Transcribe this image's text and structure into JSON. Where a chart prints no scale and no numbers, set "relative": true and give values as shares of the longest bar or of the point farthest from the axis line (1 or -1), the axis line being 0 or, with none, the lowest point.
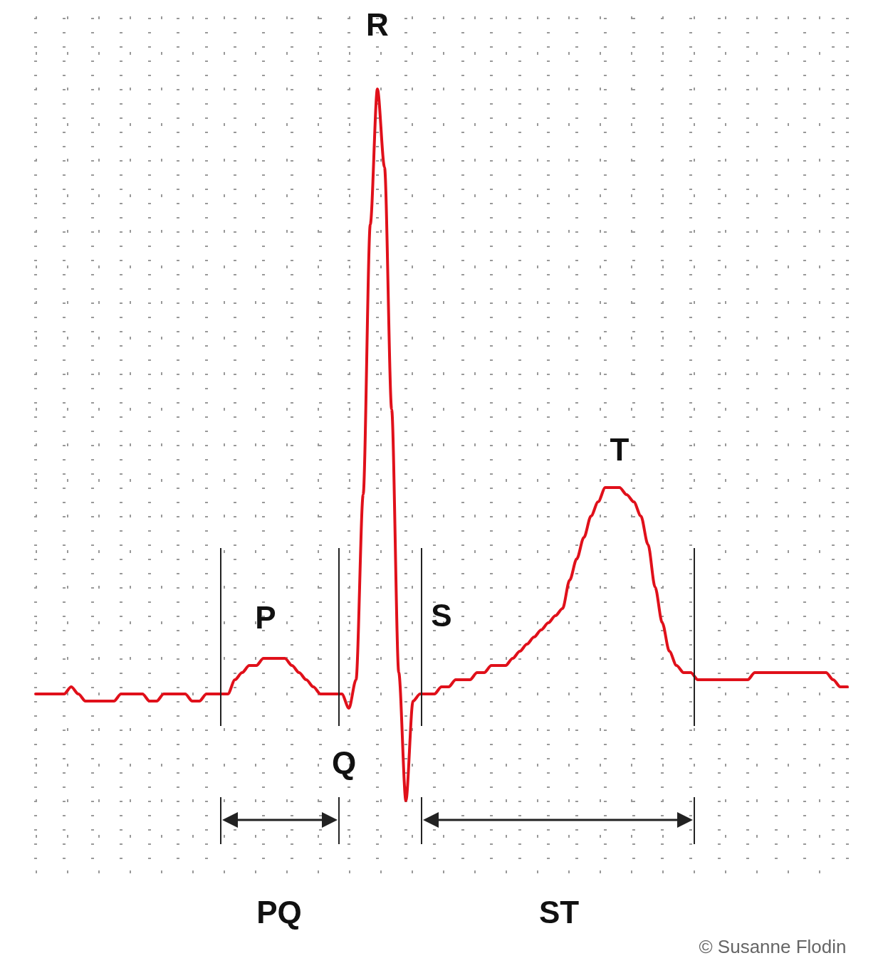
{
  "chart_data": {
    "type": "line",
    "relative": true,
    "grid": true,
    "marker": "none",
    "line_style": "solid",
    "categories": [
      null,
      null,
      null,
      null,
      null,
      null,
      null,
      null,
      null,
      null,
      null,
      null,
      null,
      null,
      null,
      null,
      null,
      null,
      null,
      null,
      null,
      null,
      null,
      null,
      null,
      null,
      null,
      null,
      null,
      null,
      null,
      null,
      null,
      null,
      null,
      null,
      null,
      null,
      null,
      null,
      null,
      null,
      null,
      null,
      null,
      null,
      null,
      null,
      null,
      null,
      null,
      null,
      null,
      null,
      null,
      null,
      null,
      null,
      null,
      null,
      null,
      null,
      null,
      null,
      null,
      null,
      null,
      null,
      null,
      null,
      null,
      null,
      null,
      null,
      null,
      null,
      null,
      null,
      null,
      null,
      null,
      null,
      null,
      null,
      null,
      null,
      null,
      null,
      null,
      null,
      null,
      null,
      null,
      null,
      null,
      null,
      null,
      null,
      null,
      null,
      null,
      null,
      null,
      null,
      null,
      null,
      null,
      null,
      null,
      null,
      null,
      null,
      null,
      null,
      null
    ],
    "series": [
      {
        "color": "#e0101a",
        "values": [
          0.15,
          0.15,
          0.15,
          0.15,
          0.15,
          0.16,
          0.15,
          0.14,
          0.14,
          0.14,
          0.14,
          0.14,
          0.15,
          0.15,
          0.15,
          0.15,
          0.14,
          0.14,
          0.15,
          0.15,
          0.15,
          0.15,
          0.14,
          0.14,
          0.15,
          0.15,
          0.15,
          0.15,
          0.17,
          0.18,
          0.19,
          0.19,
          0.2,
          0.2,
          0.2,
          0.2,
          0.19,
          0.18,
          0.17,
          0.16,
          0.15,
          0.15,
          0.15,
          0.15,
          0.13,
          0.17,
          0.43,
          0.81,
          1,
          0.89,
          0.55,
          0.18,
          0,
          0.14,
          0.15,
          0.15,
          0.15,
          0.16,
          0.16,
          0.17,
          0.17,
          0.17,
          0.18,
          0.18,
          0.19,
          0.19,
          0.19,
          0.2,
          0.21,
          0.22,
          0.23,
          0.24,
          0.25,
          0.26,
          0.27,
          0.31,
          0.34,
          0.37,
          0.4,
          0.42,
          0.44,
          0.44,
          0.44,
          0.43,
          0.42,
          0.4,
          0.36,
          0.3,
          0.25,
          0.21,
          0.19,
          0.18,
          0.18,
          0.17,
          0.17,
          0.17,
          0.17,
          0.17,
          0.17,
          0.17,
          0.17,
          0.18,
          0.18,
          0.18,
          0.18,
          0.18,
          0.18,
          0.18,
          0.18,
          0.18,
          0.18,
          0.18,
          0.17,
          0.16,
          0.16
        ]
      }
    ],
    "annotations": [
      "R",
      "P",
      "Q",
      "S",
      "T",
      "PQ",
      "ST",
      "© Susanne Flodin"
    ]
  }
}
